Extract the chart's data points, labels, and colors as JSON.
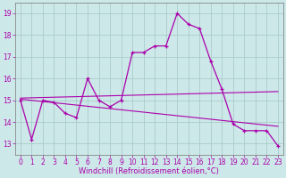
{
  "xlabel": "Windchill (Refroidissement éolien,°C)",
  "background_color": "#cde8e8",
  "grid_color": "#aacccc",
  "line_color": "#aa00aa",
  "hours": [
    0,
    1,
    2,
    3,
    4,
    5,
    6,
    7,
    8,
    9,
    10,
    11,
    12,
    13,
    14,
    15,
    16,
    17,
    18,
    19,
    20,
    21,
    22,
    23
  ],
  "windchill": [
    15.0,
    13.2,
    15.0,
    14.9,
    14.4,
    14.2,
    16.0,
    15.0,
    14.7,
    15.0,
    17.2,
    17.2,
    17.5,
    17.5,
    19.0,
    18.5,
    18.3,
    16.8,
    15.5,
    13.9,
    13.6,
    13.6,
    13.6,
    12.9
  ],
  "trend1_start": 15.1,
  "trend1_end": 15.4,
  "trend2_start": 15.05,
  "trend2_end": 13.8,
  "ylim": [
    12.5,
    19.5
  ],
  "xlim": [
    -0.5,
    23.5
  ],
  "yticks": [
    13,
    14,
    15,
    16,
    17,
    18,
    19
  ],
  "xticks": [
    0,
    1,
    2,
    3,
    4,
    5,
    6,
    7,
    8,
    9,
    10,
    11,
    12,
    13,
    14,
    15,
    16,
    17,
    18,
    19,
    20,
    21,
    22,
    23
  ],
  "tick_fontsize": 5.5,
  "xlabel_fontsize": 6.0
}
